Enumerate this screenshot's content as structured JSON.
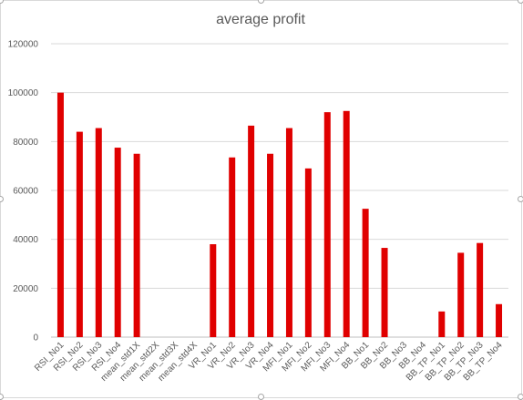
{
  "chart_data": {
    "type": "bar",
    "title": "average profit",
    "xlabel": "",
    "ylabel": "",
    "ylim": [
      0,
      120000
    ],
    "yticks": [
      0,
      20000,
      40000,
      60000,
      80000,
      100000,
      120000
    ],
    "ytick_labels": [
      "0",
      "20000",
      "40000",
      "60000",
      "80000",
      "100000",
      "120000"
    ],
    "grid": true,
    "legend": "none",
    "bar_color": "#e00000",
    "categories": [
      "RSI_No1",
      "RSI_No2",
      "RSI_No3",
      "RSI_No4",
      "mean_std1X",
      "mean_std2X",
      "mean_std3X",
      "mean_std4X",
      "VR_No1",
      "VR_No2",
      "VR_No3",
      "VR_No4",
      "MFI_No1",
      "MFI_No2",
      "MFI_No3",
      "MFI_No4",
      "BB_No1",
      "BB_No2",
      "BB_No3",
      "BB_No4",
      "BB_TP_No1",
      "BB_TP_No2",
      "BB_TP_No3",
      "BB_TP_No4"
    ],
    "values": [
      100000,
      84000,
      85500,
      77500,
      75000,
      0,
      0,
      0,
      38000,
      73500,
      86500,
      75000,
      85500,
      69000,
      92000,
      92500,
      52500,
      36500,
      0,
      0,
      10500,
      34500,
      38500,
      13500
    ]
  }
}
